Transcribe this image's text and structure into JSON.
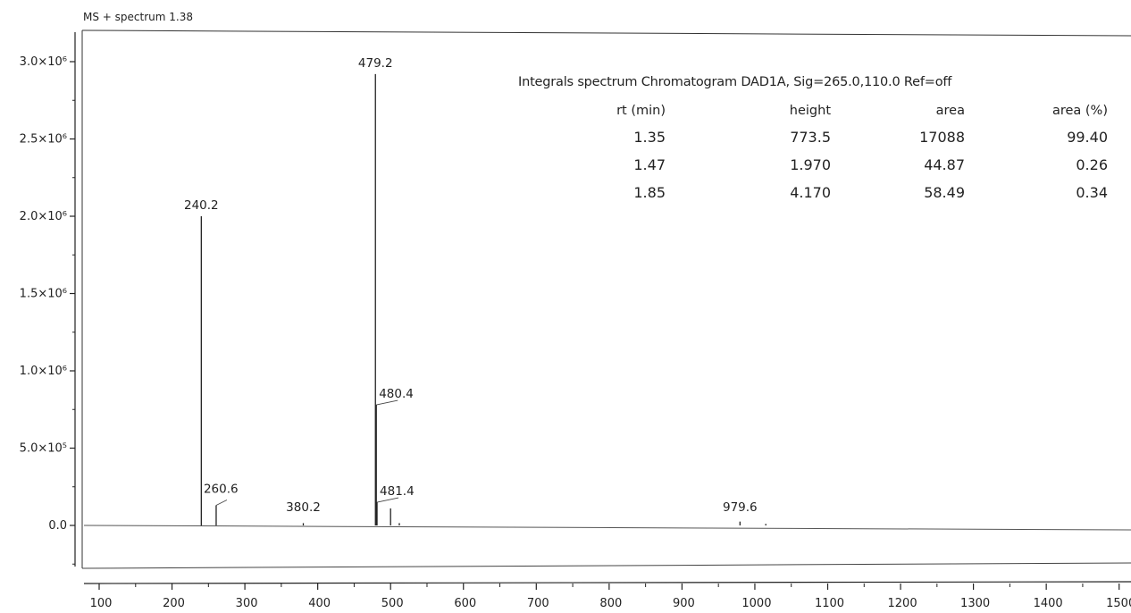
{
  "chart_data": {
    "type": "bar",
    "title": "MS + spectrum 1.38",
    "xlabel": "",
    "ylabel": "",
    "xlim": [
      70,
      1500
    ],
    "ylim": [
      -300000,
      3250000
    ],
    "x_ticks": [
      100,
      200,
      300,
      400,
      500,
      600,
      700,
      800,
      900,
      1000,
      1100,
      1200,
      1300,
      1400,
      1500
    ],
    "x_tick_labels": [
      "100",
      "200",
      "300",
      "400",
      "500",
      "600",
      "700",
      "800",
      "900",
      "1000",
      "1100",
      "1200",
      "1300",
      "1400",
      "1500"
    ],
    "y_ticks": [
      0,
      500000,
      1000000,
      1500000,
      2000000,
      2500000,
      3000000
    ],
    "y_tick_labels": [
      "0.0",
      "5.0×10⁵",
      "1.0×10⁶",
      "1.5×10⁶",
      "2.0×10⁶",
      "2.5×10⁶",
      "3.0×10⁶"
    ],
    "peaks": [
      {
        "x": 240.2,
        "y": 2000000,
        "label": "240.2"
      },
      {
        "x": 260.6,
        "y": 130000,
        "label": "260.6"
      },
      {
        "x": 380.2,
        "y": 15000,
        "label": "380.2"
      },
      {
        "x": 479.2,
        "y": 2920000,
        "label": "479.2"
      },
      {
        "x": 480.4,
        "y": 780000,
        "label": "480.4"
      },
      {
        "x": 481.4,
        "y": 150000,
        "label": "481.4"
      },
      {
        "x": 500.0,
        "y": 110000,
        "label": ""
      },
      {
        "x": 512.0,
        "y": 15000,
        "label": ""
      },
      {
        "x": 979.6,
        "y": 25000,
        "label": "979.6"
      },
      {
        "x": 1015.0,
        "y": 10000,
        "label": ""
      }
    ]
  },
  "integrals": {
    "heading": "Integrals spectrum Chromatogram DAD1A, Sig=265.0,110.0 Ref=off",
    "columns": [
      "rt (min)",
      "height",
      "area",
      "area (%)"
    ],
    "rows": [
      [
        "1.35",
        "773.5",
        "17088",
        "99.40"
      ],
      [
        "1.47",
        "1.970",
        "44.87",
        "0.26"
      ],
      [
        "1.85",
        "4.170",
        "58.49",
        "0.34"
      ]
    ]
  }
}
